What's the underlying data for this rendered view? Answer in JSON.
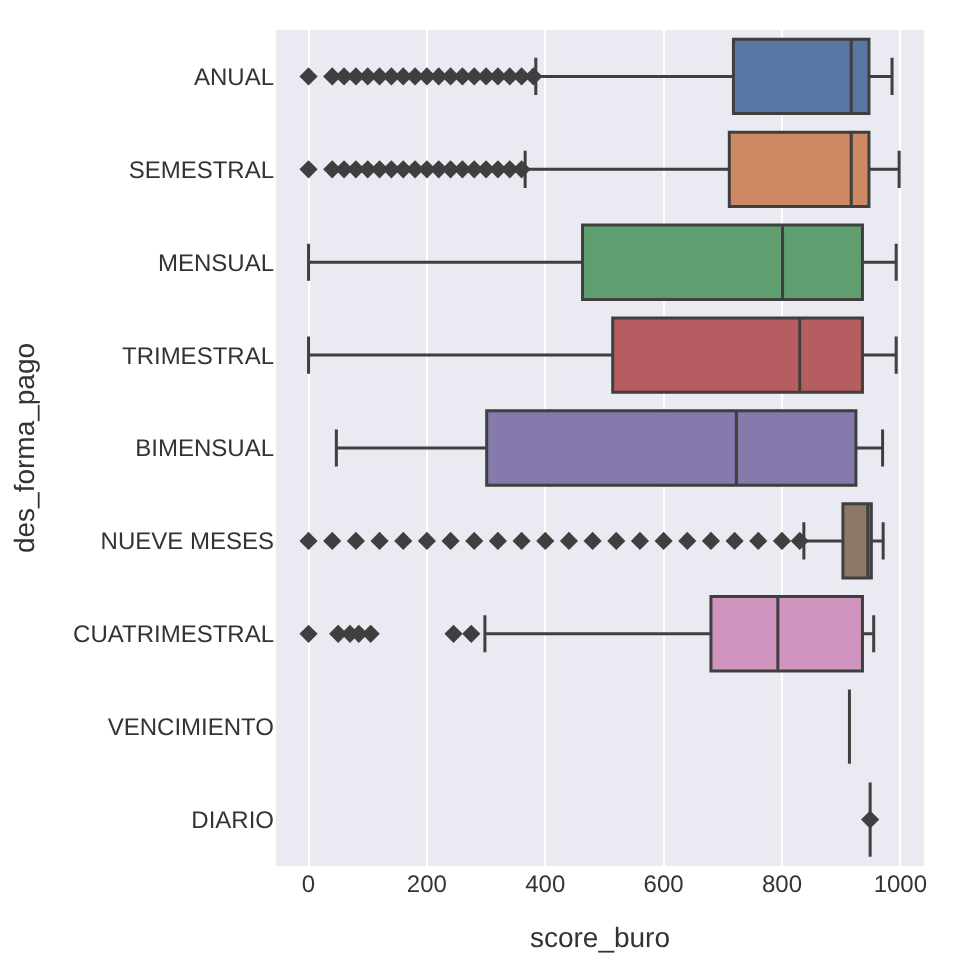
{
  "chart_data": {
    "type": "box",
    "orientation": "horizontal",
    "xlabel": "score_buro",
    "ylabel": "des_forma_pago",
    "categories": [
      "ANUAL",
      "SEMESTRAL",
      "MENSUAL",
      "TRIMESTRAL",
      "BIMENSUAL",
      "NUEVE MESES",
      "CUATRIMESTRAL",
      "VENCIMIENTO",
      "DIARIO"
    ],
    "colors": [
      "#5975a4",
      "#cc8963",
      "#5f9e6e",
      "#b55d60",
      "#857aab",
      "#8d7866",
      "#d095bf",
      "#3f3f3f",
      "#3f3f3f"
    ],
    "boxes": [
      {
        "low": 384,
        "q1": 718,
        "median": 917,
        "q3": 947,
        "high": 986,
        "outliers": [
          0,
          40,
          60,
          80,
          100,
          120,
          140,
          160,
          180,
          200,
          220,
          240,
          260,
          280,
          300,
          320,
          340,
          360,
          380
        ]
      },
      {
        "low": 366,
        "q1": 711,
        "median": 917,
        "q3": 947,
        "high": 998,
        "outliers": [
          0,
          40,
          60,
          80,
          100,
          120,
          140,
          160,
          180,
          200,
          220,
          240,
          260,
          280,
          300,
          320,
          340,
          360
        ]
      },
      {
        "low": 0,
        "q1": 463,
        "median": 801,
        "q3": 936,
        "high": 993
      },
      {
        "low": 0,
        "q1": 514,
        "median": 830,
        "q3": 936,
        "high": 993
      },
      {
        "low": 47,
        "q1": 301,
        "median": 723,
        "q3": 925,
        "high": 970
      },
      {
        "low": 837,
        "q1": 903,
        "median": 945,
        "q3": 951,
        "high": 971,
        "outliers": [
          0,
          40,
          80,
          120,
          160,
          200,
          240,
          280,
          320,
          360,
          400,
          440,
          480,
          520,
          560,
          600,
          640,
          680,
          720,
          760,
          800,
          830
        ]
      },
      {
        "low": 298,
        "q1": 680,
        "median": 793,
        "q3": 936,
        "high": 955,
        "outliers": [
          0,
          50,
          70,
          85,
          105,
          245,
          275
        ]
      },
      {
        "low": 914,
        "q1": 914,
        "median": 914,
        "q3": 914,
        "high": 914
      },
      {
        "low": 949,
        "q1": 949,
        "median": 949,
        "q3": 949,
        "high": 949,
        "outliers": [
          949
        ]
      }
    ],
    "xlim": [
      -55,
      1040
    ],
    "xticks": [
      0,
      200,
      400,
      600,
      800,
      1000
    ],
    "grid": "x",
    "legend": false
  }
}
